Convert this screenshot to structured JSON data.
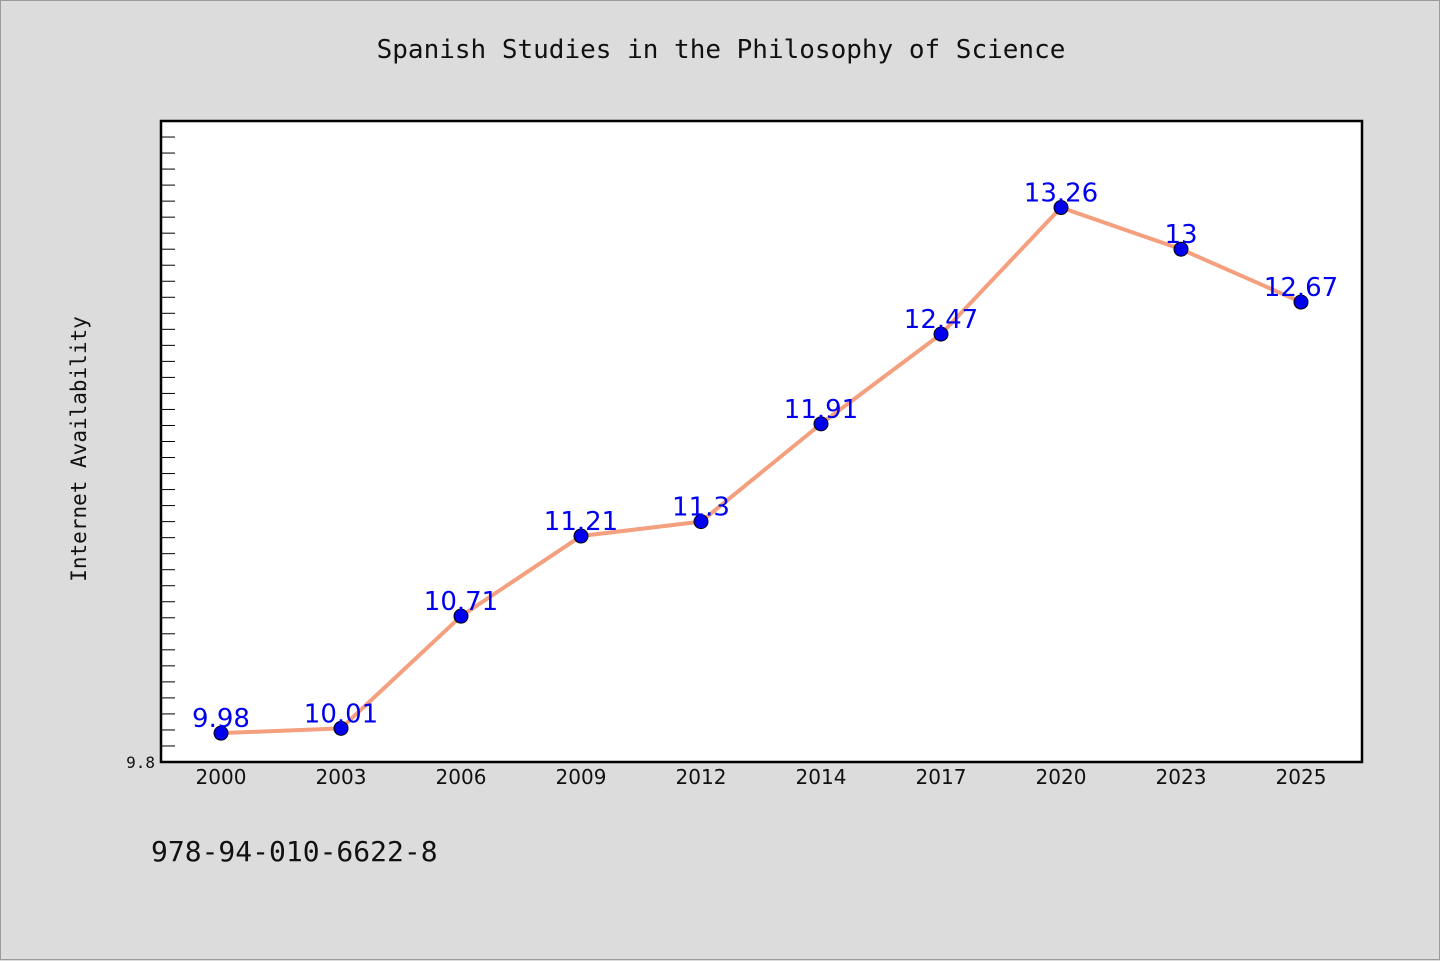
{
  "chart_data": {
    "type": "line",
    "title": "Spanish Studies in the Philosophy of Science",
    "xlabel": "",
    "ylabel": "Internet Availability",
    "categories": [
      "2000",
      "2003",
      "2006",
      "2009",
      "2012",
      "2014",
      "2017",
      "2020",
      "2023",
      "2025"
    ],
    "series": [
      {
        "values": [
          9.98,
          10.01,
          10.71,
          11.21,
          11.3,
          11.91,
          12.47,
          13.26,
          13,
          12.67
        ],
        "data_labels": [
          "9.98",
          "10.01",
          "10.71",
          "11.21",
          "11.3",
          "11.91",
          "12.47",
          "13.26",
          "13",
          "12.67"
        ],
        "line_color": "#f4a07f",
        "marker_color": "#0000ee",
        "label_color": "#0000ee"
      }
    ],
    "ylim": [
      9.8,
      13.8
    ],
    "y_ticks": [
      9.8
    ],
    "y_tick_labels": [
      "9.8"
    ],
    "grid": false,
    "plot_background": "#ffffff"
  },
  "footer": {
    "code": "978-94-010-6622-8"
  }
}
